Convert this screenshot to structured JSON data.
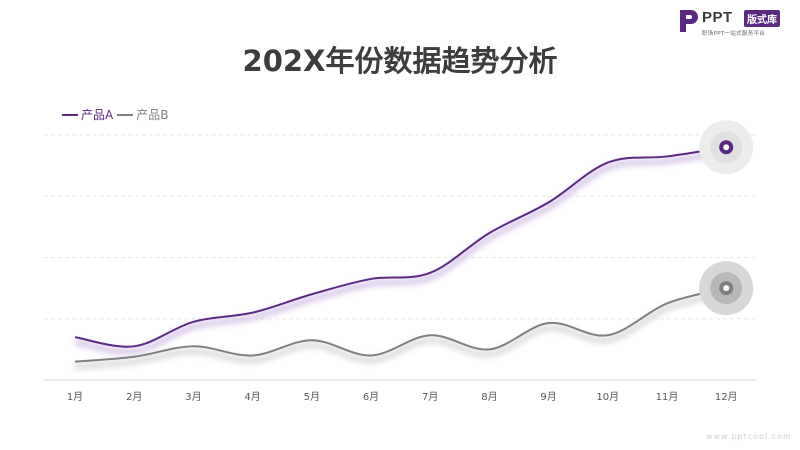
{
  "logo": {
    "brand": "PPT",
    "tag": "版式库",
    "subtitle": "职场PPT一站式服务平台"
  },
  "colors": {
    "series_a": "#5a2a82",
    "series_b": "#808080",
    "grid": "#e6e6e6",
    "axis": "#d9d9d9",
    "tick": "#595959"
  },
  "watermark": "www.pptcool.com",
  "chart_data": {
    "type": "line",
    "title": "202X年份数据趋势分析",
    "xlabel": "",
    "ylabel": "",
    "categories": [
      "1月",
      "2月",
      "3月",
      "4月",
      "5月",
      "6月",
      "7月",
      "8月",
      "9月",
      "10月",
      "11月",
      "12月"
    ],
    "ylim": [
      0,
      4
    ],
    "grid": true,
    "legend": "top-left",
    "series": [
      {
        "name": "产品A",
        "color": "#5a2a82",
        "values": [
          0.7,
          0.55,
          0.95,
          1.1,
          1.4,
          1.65,
          1.75,
          2.4,
          2.9,
          3.55,
          3.65,
          3.8
        ]
      },
      {
        "name": "产品B",
        "color": "#808080",
        "values": [
          0.3,
          0.38,
          0.55,
          0.4,
          0.65,
          0.4,
          0.73,
          0.5,
          0.93,
          0.73,
          1.25,
          1.5
        ]
      }
    ]
  }
}
